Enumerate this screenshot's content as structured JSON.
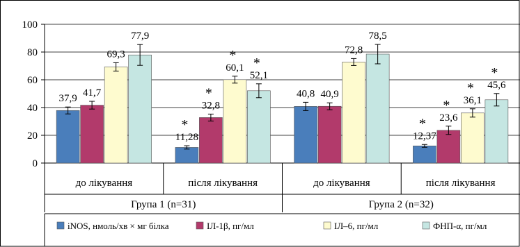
{
  "chart_data": {
    "type": "bar",
    "ylim": [
      0,
      100
    ],
    "yticks": [
      0,
      20,
      40,
      60,
      80,
      100
    ],
    "grid": true,
    "legend_position": "bottom",
    "groups": [
      {
        "name": "Група 1 (n=31)",
        "subgroups": [
          {
            "name": "до лікування",
            "values": [
              37.9,
              41.7,
              69.3,
              77.9
            ],
            "labels": [
              "37,9",
              "41,7",
              "69,3",
              "77,9"
            ],
            "errors": [
              2.5,
              2.8,
              3.0,
              7.5
            ],
            "stars": [
              false,
              false,
              false,
              false
            ]
          },
          {
            "name": "після лікування",
            "values": [
              11.28,
              32.8,
              60.1,
              52.1
            ],
            "labels": [
              "11,28",
              "32,8",
              "60,1",
              "52,1"
            ],
            "errors": [
              1.2,
              2.5,
              2.5,
              5.0
            ],
            "stars": [
              true,
              true,
              true,
              true
            ]
          }
        ]
      },
      {
        "name": "Група 2 (n=32)",
        "subgroups": [
          {
            "name": "до лікування",
            "values": [
              40.8,
              40.9,
              72.8,
              78.5
            ],
            "labels": [
              "40,8",
              "40,9",
              "72,8",
              "78,5"
            ],
            "errors": [
              3.0,
              2.5,
              2.5,
              7.0
            ],
            "stars": [
              false,
              false,
              false,
              false
            ]
          },
          {
            "name": "після лікування",
            "values": [
              12.37,
              23.6,
              36.1,
              45.6
            ],
            "labels": [
              "12,37",
              "23,6",
              "36,1",
              "45,6"
            ],
            "errors": [
              1.0,
              3.0,
              3.0,
              4.5
            ],
            "stars": [
              true,
              true,
              true,
              true
            ]
          }
        ]
      }
    ],
    "star_symbol": "*",
    "series": [
      {
        "name": "iNOS, нмоль/хв × мг білка",
        "color": "#4a7ebb"
      },
      {
        "name": "ІЛ-1β, пг/мл",
        "color": "#b23a6b"
      },
      {
        "name": "ІЛ–6, пг/мл",
        "color": "#fefbcf"
      },
      {
        "name": "ФНП-α, пг/мл",
        "color": "#c5e6e2"
      }
    ]
  }
}
